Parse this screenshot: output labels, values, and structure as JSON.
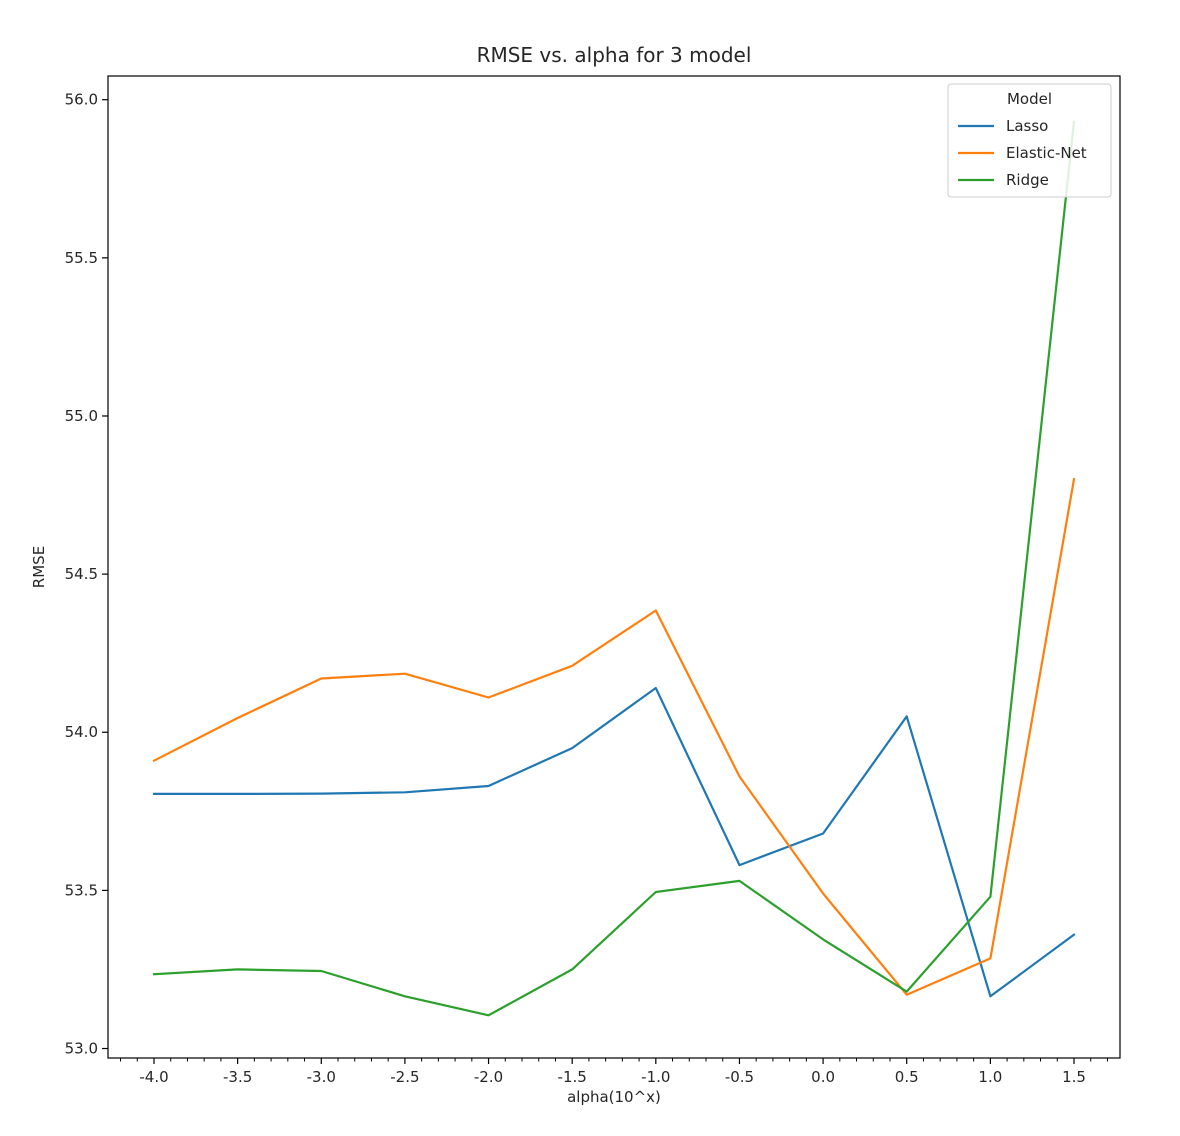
{
  "chart_data": {
    "type": "line",
    "title": "RMSE vs. alpha for 3 model",
    "xlabel": "alpha(10^x)",
    "ylabel": "RMSE",
    "xlim": [
      -4.275,
      1.775
    ],
    "ylim": [
      52.97,
      56.075
    ],
    "xticks": [
      -4.0,
      -3.5,
      -3.0,
      -2.5,
      -2.0,
      -1.5,
      -1.0,
      -0.5,
      0.0,
      0.5,
      1.0,
      1.5
    ],
    "xtick_labels": [
      "-4.0",
      "-3.5",
      "-3.0",
      "-2.5",
      "-2.0",
      "-1.5",
      "-1.0",
      "-0.5",
      "0.0",
      "0.5",
      "1.0",
      "1.5"
    ],
    "yticks": [
      53.0,
      53.5,
      54.0,
      54.5,
      55.0,
      55.5,
      56.0
    ],
    "ytick_labels": [
      "53.0",
      "53.5",
      "54.0",
      "54.5",
      "55.0",
      "55.5",
      "56.0"
    ],
    "x": [
      -4.0,
      -3.5,
      -3.0,
      -2.5,
      -2.0,
      -1.5,
      -1.0,
      -0.5,
      0.0,
      0.5,
      1.0,
      1.5
    ],
    "grid": false,
    "legend": {
      "title": "Model",
      "position": "top-right"
    },
    "series": [
      {
        "name": "Lasso",
        "color": "#1f77b4",
        "values": [
          53.805,
          53.805,
          53.806,
          53.81,
          53.83,
          53.95,
          54.14,
          53.58,
          53.68,
          54.05,
          53.165,
          53.36
        ]
      },
      {
        "name": "Elastic-Net",
        "color": "#ff7f0e",
        "values": [
          53.91,
          54.045,
          54.17,
          54.185,
          54.11,
          54.21,
          54.385,
          53.86,
          53.49,
          53.17,
          53.285,
          54.8
        ]
      },
      {
        "name": "Ridge",
        "color": "#2ca02c",
        "values": [
          53.235,
          53.25,
          53.245,
          53.165,
          53.105,
          53.25,
          53.495,
          53.53,
          53.345,
          53.18,
          53.48,
          55.93
        ]
      }
    ]
  }
}
